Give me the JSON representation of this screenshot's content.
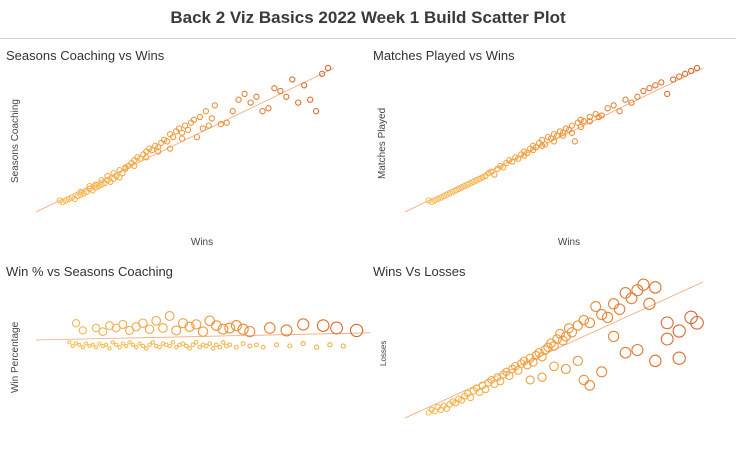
{
  "page": {
    "title": "Back 2 Viz Basics 2022 Week 1 Build Scatter Plot"
  },
  "colors": {
    "light": "#f7c35a",
    "mid": "#ef9a3d",
    "dark": "#d6602b",
    "trend": "#ef8f55"
  },
  "chart_data": [
    {
      "type": "scatter",
      "title": "Seasons Coaching vs Wins",
      "xlabel": "Wins",
      "ylabel": "Seasons Coaching",
      "xlim": [
        0,
        100
      ],
      "ylim": [
        0,
        100
      ],
      "trend": [
        [
          0,
          0
        ],
        [
          100,
          100
        ]
      ],
      "points": [
        [
          8,
          8
        ],
        [
          9,
          7
        ],
        [
          10,
          8
        ],
        [
          11,
          9
        ],
        [
          12,
          10
        ],
        [
          13,
          9
        ],
        [
          14,
          11
        ],
        [
          15,
          12
        ],
        [
          16,
          13
        ],
        [
          17,
          14
        ],
        [
          18,
          16
        ],
        [
          19,
          15
        ],
        [
          20,
          17
        ],
        [
          21,
          18
        ],
        [
          22,
          19
        ],
        [
          23,
          20
        ],
        [
          24,
          22
        ],
        [
          25,
          21
        ],
        [
          26,
          23
        ],
        [
          27,
          25
        ],
        [
          28,
          24
        ],
        [
          29,
          27
        ],
        [
          30,
          30
        ],
        [
          31,
          32
        ],
        [
          32,
          34
        ],
        [
          33,
          36
        ],
        [
          34,
          38
        ],
        [
          35,
          37
        ],
        [
          36,
          40
        ],
        [
          37,
          42
        ],
        [
          38,
          44
        ],
        [
          39,
          43
        ],
        [
          40,
          46
        ],
        [
          41,
          45
        ],
        [
          42,
          48
        ],
        [
          43,
          50
        ],
        [
          44,
          49
        ],
        [
          45,
          54
        ],
        [
          46,
          52
        ],
        [
          47,
          56
        ],
        [
          48,
          58
        ],
        [
          49,
          55
        ],
        [
          50,
          60
        ],
        [
          51,
          57
        ],
        [
          52,
          62
        ],
        [
          53,
          64
        ],
        [
          54,
          52
        ],
        [
          55,
          66
        ],
        [
          56,
          58
        ],
        [
          57,
          70
        ],
        [
          58,
          60
        ],
        [
          59,
          65
        ],
        [
          60,
          74
        ],
        [
          62,
          61
        ],
        [
          64,
          62
        ],
        [
          66,
          70
        ],
        [
          68,
          78
        ],
        [
          70,
          82
        ],
        [
          72,
          76
        ],
        [
          74,
          80
        ],
        [
          76,
          70
        ],
        [
          78,
          72
        ],
        [
          80,
          86
        ],
        [
          82,
          84
        ],
        [
          84,
          80
        ],
        [
          86,
          92
        ],
        [
          88,
          76
        ],
        [
          90,
          88
        ],
        [
          92,
          78
        ],
        [
          94,
          70
        ],
        [
          96,
          96
        ],
        [
          98,
          100
        ],
        [
          20,
          19
        ],
        [
          24,
          25
        ],
        [
          28,
          29
        ],
        [
          33,
          32
        ],
        [
          37,
          38
        ],
        [
          41,
          42
        ],
        [
          45,
          44
        ],
        [
          49,
          51
        ],
        [
          15,
          14
        ],
        [
          18,
          18
        ],
        [
          22,
          22
        ],
        [
          26,
          27
        ],
        [
          30,
          31
        ]
      ]
    },
    {
      "type": "scatter",
      "title": "Matches Played vs Wins",
      "xlabel": "Wins",
      "ylabel": "Matches Played",
      "xlim": [
        0,
        100
      ],
      "ylim": [
        0,
        100
      ],
      "trend": [
        [
          0,
          0
        ],
        [
          100,
          100
        ]
      ],
      "points": [
        [
          8,
          8
        ],
        [
          9,
          7
        ],
        [
          10,
          8
        ],
        [
          11,
          9
        ],
        [
          12,
          10
        ],
        [
          13,
          11
        ],
        [
          14,
          12
        ],
        [
          15,
          13
        ],
        [
          16,
          14
        ],
        [
          17,
          15
        ],
        [
          18,
          16
        ],
        [
          19,
          17
        ],
        [
          20,
          18
        ],
        [
          21,
          19
        ],
        [
          22,
          20
        ],
        [
          23,
          21
        ],
        [
          24,
          22
        ],
        [
          25,
          23
        ],
        [
          26,
          24
        ],
        [
          27,
          25
        ],
        [
          28,
          27
        ],
        [
          29,
          28
        ],
        [
          30,
          26
        ],
        [
          31,
          30
        ],
        [
          32,
          32
        ],
        [
          33,
          31
        ],
        [
          34,
          34
        ],
        [
          35,
          36
        ],
        [
          36,
          35
        ],
        [
          37,
          38
        ],
        [
          38,
          37
        ],
        [
          39,
          40
        ],
        [
          40,
          42
        ],
        [
          41,
          41
        ],
        [
          42,
          44
        ],
        [
          43,
          46
        ],
        [
          44,
          45
        ],
        [
          45,
          48
        ],
        [
          46,
          50
        ],
        [
          47,
          47
        ],
        [
          48,
          52
        ],
        [
          49,
          51
        ],
        [
          50,
          54
        ],
        [
          51,
          53
        ],
        [
          52,
          56
        ],
        [
          53,
          55
        ],
        [
          54,
          58
        ],
        [
          55,
          57
        ],
        [
          56,
          60
        ],
        [
          57,
          49
        ],
        [
          58,
          62
        ],
        [
          59,
          64
        ],
        [
          60,
          63
        ],
        [
          62,
          66
        ],
        [
          64,
          68
        ],
        [
          66,
          67
        ],
        [
          68,
          72
        ],
        [
          70,
          74
        ],
        [
          72,
          70
        ],
        [
          74,
          78
        ],
        [
          76,
          76
        ],
        [
          78,
          80
        ],
        [
          80,
          84
        ],
        [
          82,
          86
        ],
        [
          84,
          88
        ],
        [
          86,
          90
        ],
        [
          88,
          82
        ],
        [
          90,
          92
        ],
        [
          92,
          94
        ],
        [
          94,
          96
        ],
        [
          96,
          98
        ],
        [
          98,
          100
        ],
        [
          40,
          39
        ],
        [
          43,
          43
        ],
        [
          46,
          46
        ],
        [
          50,
          49
        ],
        [
          53,
          53
        ],
        [
          56,
          55
        ],
        [
          59,
          59
        ],
        [
          62,
          63
        ],
        [
          65,
          66
        ]
      ]
    },
    {
      "type": "scatter",
      "title": "Win % vs Seasons Coaching",
      "xlabel": "",
      "ylabel": "Win Percentage",
      "xlim": [
        0,
        100
      ],
      "ylim": [
        0,
        100
      ],
      "trend": [
        [
          0,
          50
        ],
        [
          100,
          56
        ]
      ],
      "points": [
        [
          12,
          64
        ],
        [
          14,
          58
        ],
        [
          18,
          60
        ],
        [
          20,
          57
        ],
        [
          22,
          62
        ],
        [
          24,
          60
        ],
        [
          26,
          63
        ],
        [
          28,
          58
        ],
        [
          30,
          61
        ],
        [
          32,
          64
        ],
        [
          34,
          59
        ],
        [
          36,
          66
        ],
        [
          38,
          60
        ],
        [
          40,
          70
        ],
        [
          42,
          58
        ],
        [
          44,
          64
        ],
        [
          46,
          61
        ],
        [
          48,
          63
        ],
        [
          50,
          57
        ],
        [
          52,
          66
        ],
        [
          54,
          62
        ],
        [
          56,
          59
        ],
        [
          58,
          60
        ],
        [
          60,
          62
        ],
        [
          62,
          59
        ],
        [
          64,
          57
        ],
        [
          70,
          60
        ],
        [
          75,
          58
        ],
        [
          80,
          63
        ],
        [
          86,
          62
        ],
        [
          90,
          60
        ],
        [
          96,
          58
        ],
        [
          10,
          48
        ],
        [
          11,
          45
        ],
        [
          12,
          47
        ],
        [
          13,
          46
        ],
        [
          14,
          44
        ],
        [
          15,
          47
        ],
        [
          16,
          45
        ],
        [
          17,
          46
        ],
        [
          18,
          44
        ],
        [
          19,
          47
        ],
        [
          20,
          45
        ],
        [
          21,
          46
        ],
        [
          22,
          43
        ],
        [
          23,
          48
        ],
        [
          24,
          46
        ],
        [
          25,
          44
        ],
        [
          26,
          47
        ],
        [
          27,
          45
        ],
        [
          28,
          48
        ],
        [
          29,
          46
        ],
        [
          30,
          44
        ],
        [
          31,
          47
        ],
        [
          32,
          45
        ],
        [
          33,
          43
        ],
        [
          34,
          46
        ],
        [
          35,
          48
        ],
        [
          36,
          45
        ],
        [
          37,
          44
        ],
        [
          38,
          47
        ],
        [
          39,
          46
        ],
        [
          40,
          45
        ],
        [
          41,
          48
        ],
        [
          42,
          44
        ],
        [
          43,
          46
        ],
        [
          44,
          47
        ],
        [
          45,
          45
        ],
        [
          46,
          43
        ],
        [
          47,
          46
        ],
        [
          48,
          48
        ],
        [
          49,
          44
        ],
        [
          50,
          46
        ],
        [
          51,
          45
        ],
        [
          52,
          47
        ],
        [
          53,
          43
        ],
        [
          54,
          46
        ],
        [
          55,
          44
        ],
        [
          56,
          48
        ],
        [
          57,
          45
        ],
        [
          58,
          46
        ],
        [
          60,
          44
        ],
        [
          62,
          47
        ],
        [
          64,
          45
        ],
        [
          66,
          46
        ],
        [
          68,
          44
        ],
        [
          72,
          46
        ],
        [
          76,
          45
        ],
        [
          80,
          47
        ],
        [
          84,
          44
        ],
        [
          88,
          46
        ],
        [
          92,
          45
        ]
      ]
    },
    {
      "type": "scatter",
      "title": "Wins Vs Losses",
      "xlabel": "",
      "ylabel": "Losses",
      "xlim": [
        0,
        100
      ],
      "ylim": [
        0,
        100
      ],
      "trend": [
        [
          0,
          0
        ],
        [
          100,
          100
        ]
      ],
      "points": [
        [
          8,
          4
        ],
        [
          9,
          6
        ],
        [
          10,
          5
        ],
        [
          11,
          8
        ],
        [
          12,
          6
        ],
        [
          13,
          9
        ],
        [
          14,
          7
        ],
        [
          15,
          10
        ],
        [
          16,
          12
        ],
        [
          17,
          11
        ],
        [
          18,
          14
        ],
        [
          19,
          13
        ],
        [
          20,
          16
        ],
        [
          21,
          18
        ],
        [
          22,
          15
        ],
        [
          23,
          20
        ],
        [
          24,
          22
        ],
        [
          25,
          19
        ],
        [
          26,
          24
        ],
        [
          27,
          21
        ],
        [
          28,
          26
        ],
        [
          29,
          28
        ],
        [
          30,
          25
        ],
        [
          31,
          30
        ],
        [
          32,
          27
        ],
        [
          33,
          32
        ],
        [
          34,
          34
        ],
        [
          35,
          31
        ],
        [
          36,
          36
        ],
        [
          37,
          38
        ],
        [
          38,
          35
        ],
        [
          39,
          40
        ],
        [
          40,
          42
        ],
        [
          41,
          39
        ],
        [
          42,
          44
        ],
        [
          43,
          41
        ],
        [
          44,
          46
        ],
        [
          45,
          48
        ],
        [
          46,
          45
        ],
        [
          47,
          50
        ],
        [
          48,
          52
        ],
        [
          49,
          55
        ],
        [
          50,
          53
        ],
        [
          51,
          58
        ],
        [
          52,
          62
        ],
        [
          53,
          57
        ],
        [
          54,
          60
        ],
        [
          55,
          66
        ],
        [
          56,
          63
        ],
        [
          58,
          68
        ],
        [
          60,
          72
        ],
        [
          62,
          70
        ],
        [
          64,
          82
        ],
        [
          66,
          76
        ],
        [
          68,
          74
        ],
        [
          70,
          84
        ],
        [
          72,
          80
        ],
        [
          74,
          92
        ],
        [
          76,
          88
        ],
        [
          78,
          94
        ],
        [
          80,
          98
        ],
        [
          82,
          84
        ],
        [
          84,
          96
        ],
        [
          88,
          70
        ],
        [
          92,
          64
        ],
        [
          96,
          74
        ],
        [
          98,
          70
        ],
        [
          60,
          28
        ],
        [
          62,
          24
        ],
        [
          66,
          34
        ],
        [
          50,
          38
        ],
        [
          46,
          30
        ],
        [
          42,
          28
        ],
        [
          54,
          36
        ],
        [
          58,
          42
        ],
        [
          70,
          60
        ],
        [
          74,
          48
        ],
        [
          78,
          50
        ],
        [
          84,
          42
        ],
        [
          88,
          58
        ],
        [
          92,
          44
        ]
      ]
    }
  ]
}
